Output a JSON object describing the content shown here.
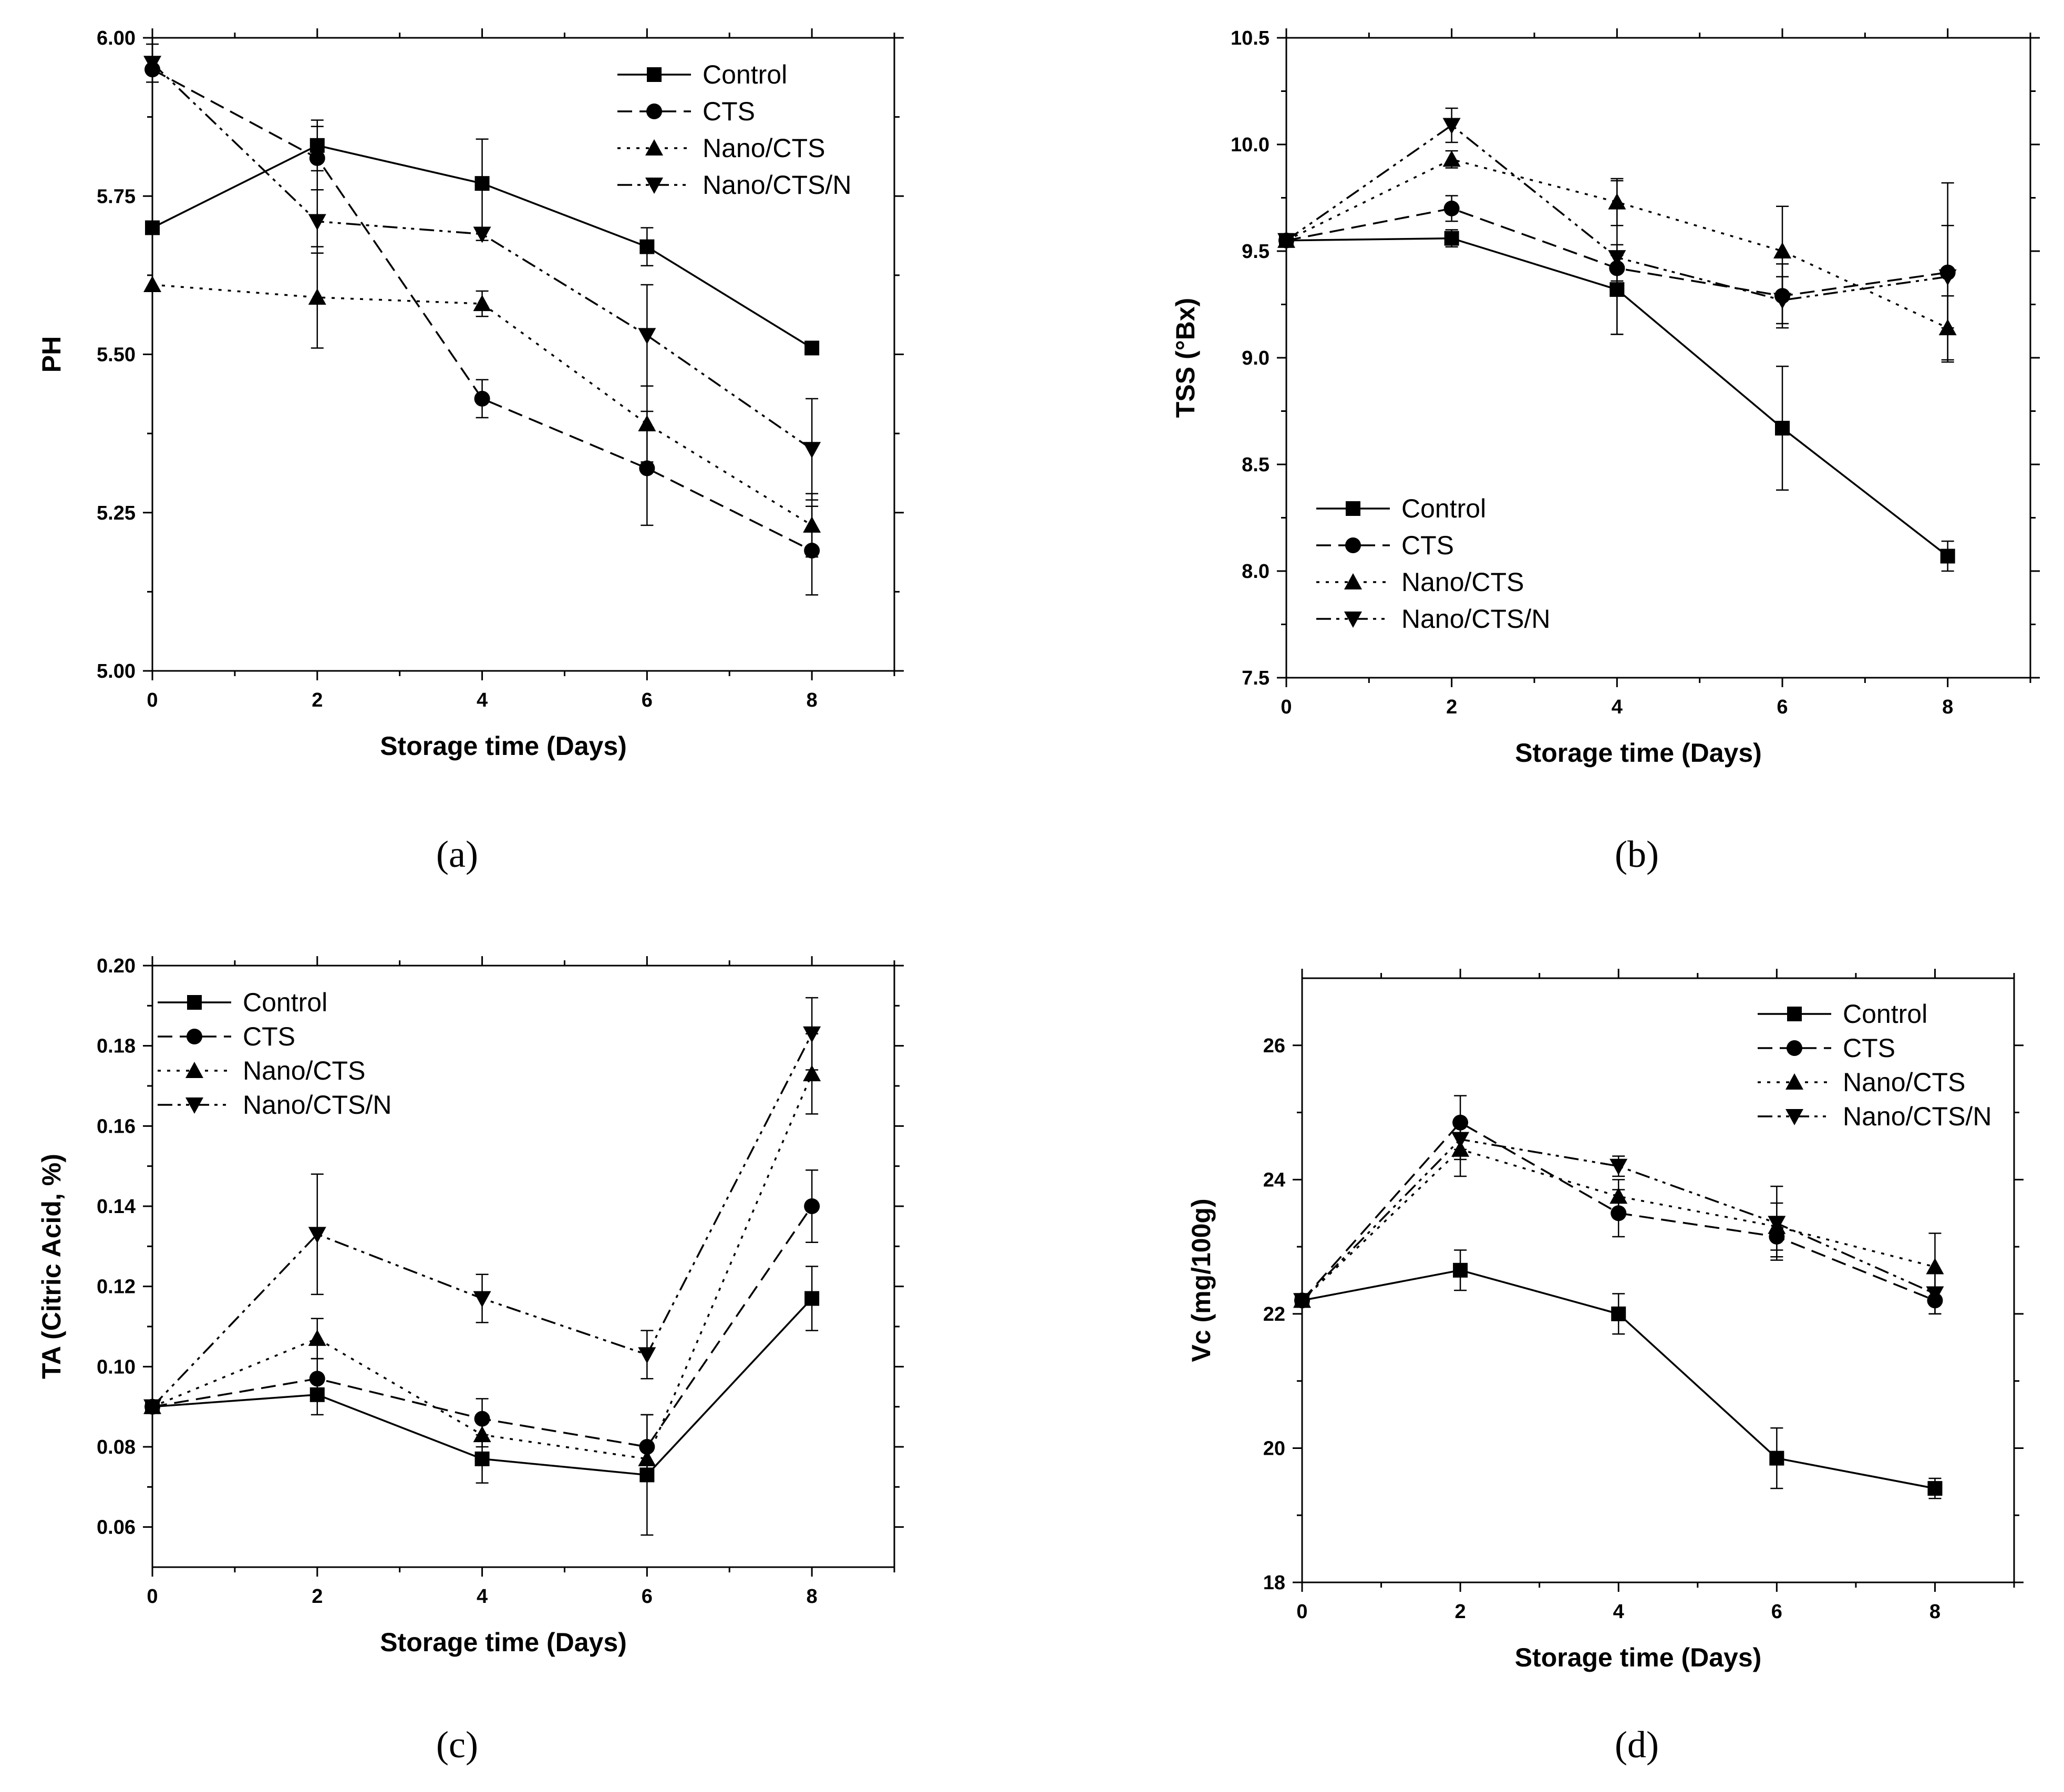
{
  "series_styles": [
    {
      "name": "Control",
      "dash": "",
      "marker": "square"
    },
    {
      "name": "CTS",
      "dash": "28 14",
      "marker": "circle"
    },
    {
      "name": "Nano/CTS",
      "dash": "6 12",
      "marker": "triangle-up"
    },
    {
      "name": "Nano/CTS/N",
      "dash": "28 10 6 10 6 10",
      "marker": "triangle-down"
    }
  ],
  "chart_data": [
    {
      "type": "line",
      "caption": "(a)",
      "title": "",
      "xlabel": "Storage time (Days)",
      "ylabel": "PH",
      "x": [
        0,
        2,
        4,
        6,
        8
      ],
      "xticks": [
        "0",
        "2",
        "4",
        "6",
        "8"
      ],
      "xlim": [
        0,
        9
      ],
      "ylim": [
        5.0,
        6.0
      ],
      "yticks": [
        5.0,
        5.25,
        5.5,
        5.75,
        6.0
      ],
      "ytick_labels": [
        "5.00",
        "5.25",
        "5.50",
        "5.75",
        "6.00"
      ],
      "legend_position": "top-right",
      "series": [
        {
          "name": "Control",
          "values": [
            5.7,
            5.83,
            5.77,
            5.67,
            5.51
          ],
          "errors": [
            0.0,
            0.04,
            0.07,
            0.03,
            0.01
          ]
        },
        {
          "name": "CTS",
          "values": [
            5.95,
            5.81,
            5.43,
            5.32,
            5.19
          ],
          "errors": [
            0.0,
            0.05,
            0.03,
            0.09,
            0.07
          ]
        },
        {
          "name": "Nano/CTS",
          "values": [
            5.61,
            5.59,
            5.58,
            5.39,
            5.23
          ],
          "errors": [
            0.0,
            0.08,
            0.02,
            0.06,
            0.05
          ]
        },
        {
          "name": "Nano/CTS/N",
          "values": [
            5.96,
            5.71,
            5.69,
            5.53,
            5.35
          ],
          "errors": [
            0.03,
            0.05,
            0.01,
            0.08,
            0.08
          ]
        }
      ]
    },
    {
      "type": "line",
      "caption": "(b)",
      "title": "",
      "xlabel": "Storage time (Days)",
      "ylabel": "TSS (°Bx)",
      "x": [
        0,
        2,
        4,
        6,
        8
      ],
      "xticks": [
        "0",
        "2",
        "4",
        "6",
        "8"
      ],
      "xlim": [
        0,
        9
      ],
      "ylim": [
        7.5,
        10.5
      ],
      "yticks": [
        7.5,
        8.0,
        8.5,
        9.0,
        9.5,
        10.0,
        10.5
      ],
      "ytick_labels": [
        "7.5",
        "8.0",
        "8.5",
        "9.0",
        "9.5",
        "10.0",
        "10.5"
      ],
      "legend_position": "bottom-left",
      "series": [
        {
          "name": "Control",
          "values": [
            9.55,
            9.56,
            9.32,
            8.67,
            8.07
          ],
          "errors": [
            0.0,
            0.04,
            0.21,
            0.29,
            0.07
          ]
        },
        {
          "name": "CTS",
          "values": [
            9.55,
            9.7,
            9.42,
            9.29,
            9.4
          ],
          "errors": [
            0.0,
            0.06,
            0.06,
            0.15,
            0.42
          ]
        },
        {
          "name": "Nano/CTS",
          "values": [
            9.55,
            9.93,
            9.73,
            9.5,
            9.14
          ],
          "errors": [
            0.0,
            0.04,
            0.11,
            0.21,
            0.15
          ]
        },
        {
          "name": "Nano/CTS/N",
          "values": [
            9.55,
            10.09,
            9.47,
            9.27,
            9.38
          ],
          "errors": [
            0.0,
            0.08,
            0.36,
            0.11,
            0.24
          ]
        }
      ]
    },
    {
      "type": "line",
      "caption": "(c)",
      "title": "",
      "xlabel": "Storage time (Days)",
      "ylabel": "TA (Citric Acid, %)",
      "x": [
        0,
        2,
        4,
        6,
        8
      ],
      "xticks": [
        "0",
        "2",
        "4",
        "6",
        "8"
      ],
      "xlim": [
        0,
        9
      ],
      "ylim": [
        0.05,
        0.2
      ],
      "yticks": [
        0.06,
        0.08,
        0.1,
        0.12,
        0.14,
        0.16,
        0.18,
        0.2
      ],
      "ytick_labels": [
        "0.06",
        "0.08",
        "0.10",
        "0.12",
        "0.14",
        "0.16",
        "0.18",
        "0.20"
      ],
      "legend_position": "top-left",
      "series": [
        {
          "name": "Control",
          "values": [
            0.09,
            0.093,
            0.077,
            0.073,
            0.117
          ],
          "errors": [
            0.0,
            0.005,
            0.006,
            0.015,
            0.008
          ]
        },
        {
          "name": "CTS",
          "values": [
            0.09,
            0.097,
            0.087,
            0.08,
            0.14
          ],
          "errors": [
            0.0,
            0.005,
            0.005,
            0.008,
            0.009
          ]
        },
        {
          "name": "Nano/CTS",
          "values": [
            0.09,
            0.107,
            0.083,
            0.077,
            0.173
          ],
          "errors": [
            0.0,
            0.005,
            0.003,
            0.003,
            0.01
          ]
        },
        {
          "name": "Nano/CTS/N",
          "values": [
            0.09,
            0.133,
            0.117,
            0.103,
            0.183
          ],
          "errors": [
            0.0,
            0.015,
            0.006,
            0.006,
            0.009
          ]
        }
      ]
    },
    {
      "type": "line",
      "caption": "(d)",
      "title": "",
      "xlabel": "Storage time (Days)",
      "ylabel": "Vc (mg/100g)",
      "x": [
        0,
        2,
        4,
        6,
        8
      ],
      "xticks": [
        "0",
        "2",
        "4",
        "6",
        "8"
      ],
      "xlim": [
        0,
        9
      ],
      "ylim": [
        18,
        27
      ],
      "yticks": [
        18,
        20,
        22,
        24,
        26
      ],
      "ytick_labels": [
        "18",
        "20",
        "22",
        "24",
        "26"
      ],
      "legend_position": "top-right",
      "series": [
        {
          "name": "Control",
          "values": [
            22.2,
            22.65,
            22.0,
            19.85,
            19.4
          ],
          "errors": [
            0.0,
            0.3,
            0.3,
            0.45,
            0.15
          ]
        },
        {
          "name": "CTS",
          "values": [
            22.2,
            24.85,
            23.5,
            23.15,
            22.2
          ],
          "errors": [
            0.0,
            0.4,
            0.35,
            0.3,
            0.2
          ]
        },
        {
          "name": "Nano/CTS",
          "values": [
            22.2,
            24.45,
            23.75,
            23.3,
            22.7
          ],
          "errors": [
            0.0,
            0.4,
            0.25,
            0.35,
            0.5
          ]
        },
        {
          "name": "Nano/CTS/N",
          "values": [
            22.2,
            24.6,
            24.2,
            23.35,
            22.3
          ],
          "errors": [
            0.0,
            0.3,
            0.15,
            0.55,
            0.3
          ]
        }
      ]
    }
  ]
}
